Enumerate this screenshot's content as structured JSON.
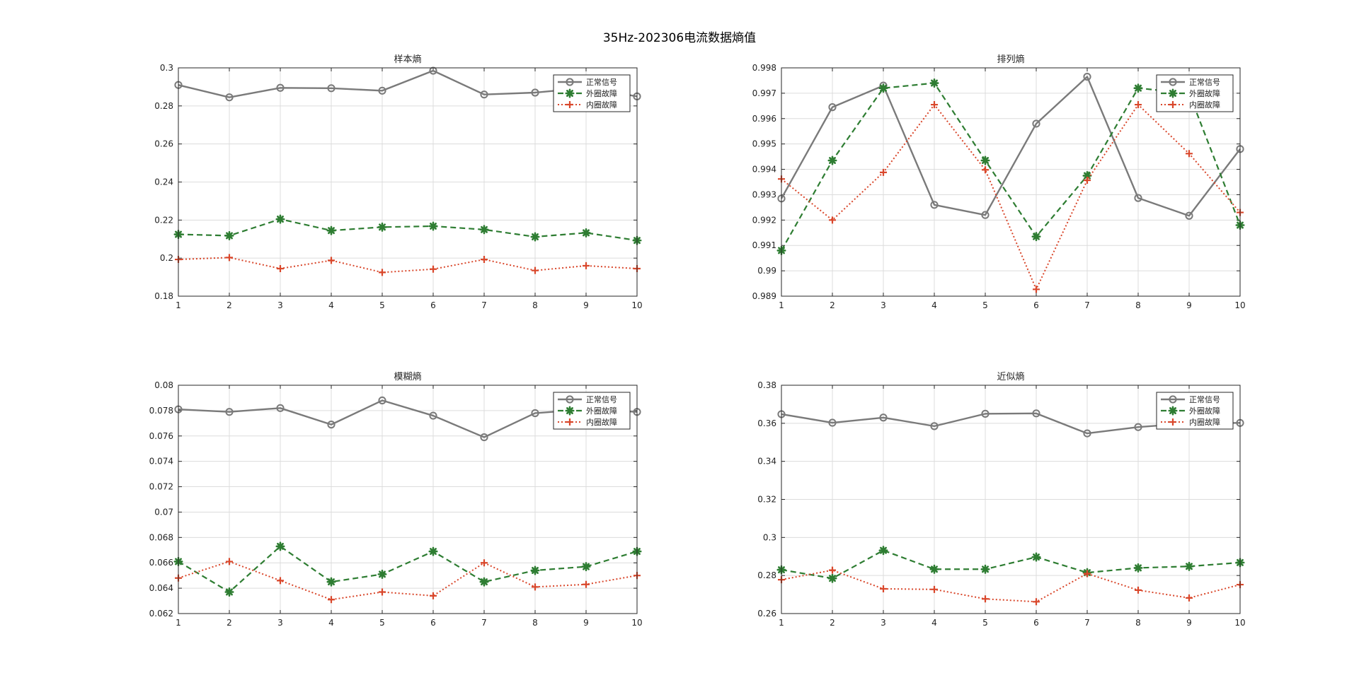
{
  "figure_title": "35Hz-202306电流数据熵值",
  "colors": {
    "normal": "#7a7a7a",
    "outer": "#2e7d32",
    "inner": "#d9472b",
    "grid": "#dcdcdc",
    "axis": "#262626"
  },
  "chart_data": [
    {
      "type": "line",
      "title": "样本熵",
      "x": [
        1,
        2,
        3,
        4,
        5,
        6,
        7,
        8,
        9,
        10
      ],
      "xlim": [
        1,
        10
      ],
      "ylim": [
        0.18,
        0.3
      ],
      "yticks": [
        0.18,
        0.2,
        0.22,
        0.24,
        0.26,
        0.28,
        0.3
      ],
      "ytick_labels": [
        "0.18",
        "0.2",
        "0.22",
        "0.24",
        "0.26",
        "0.28",
        "0.3"
      ],
      "grid": true,
      "legend_position": "top-right",
      "series": [
        {
          "name": "正常信号",
          "values": [
            0.291,
            0.2845,
            0.2895,
            0.2893,
            0.288,
            0.2985,
            0.286,
            0.287,
            0.2895,
            0.285
          ]
        },
        {
          "name": "外圈故障",
          "values": [
            0.2125,
            0.2118,
            0.2205,
            0.2145,
            0.2163,
            0.2168,
            0.215,
            0.2112,
            0.2133,
            0.2093
          ]
        },
        {
          "name": "内圈故障",
          "values": [
            0.1993,
            0.2003,
            0.1945,
            0.1988,
            0.1925,
            0.1942,
            0.1993,
            0.1935,
            0.196,
            0.1945
          ]
        }
      ]
    },
    {
      "type": "line",
      "title": "排列熵",
      "x": [
        1,
        2,
        3,
        4,
        5,
        6,
        7,
        8,
        9,
        10
      ],
      "xlim": [
        1,
        10
      ],
      "ylim": [
        0.989,
        0.998
      ],
      "yticks": [
        0.989,
        0.99,
        0.991,
        0.992,
        0.993,
        0.994,
        0.995,
        0.996,
        0.997,
        0.998
      ],
      "ytick_labels": [
        "0.989",
        "0.99",
        "0.991",
        "0.992",
        "0.993",
        "0.994",
        "0.995",
        "0.996",
        "0.997",
        "0.998"
      ],
      "grid": true,
      "legend_position": "top-right",
      "series": [
        {
          "name": "正常信号",
          "values": [
            0.99285,
            0.99645,
            0.9973,
            0.9926,
            0.9922,
            0.9958,
            0.99765,
            0.99287,
            0.99217,
            0.9948
          ]
        },
        {
          "name": "外圈故障",
          "values": [
            0.9908,
            0.99435,
            0.9972,
            0.9974,
            0.99435,
            0.99135,
            0.99375,
            0.9972,
            0.997,
            0.9918
          ]
        },
        {
          "name": "内圈故障",
          "values": [
            0.99362,
            0.992,
            0.99388,
            0.99655,
            0.99398,
            0.98927,
            0.99357,
            0.99655,
            0.99462,
            0.9923
          ]
        }
      ]
    },
    {
      "type": "line",
      "title": "模糊熵",
      "x": [
        1,
        2,
        3,
        4,
        5,
        6,
        7,
        8,
        9,
        10
      ],
      "xlim": [
        1,
        10
      ],
      "ylim": [
        0.062,
        0.08
      ],
      "yticks": [
        0.062,
        0.064,
        0.066,
        0.068,
        0.07,
        0.072,
        0.074,
        0.076,
        0.078,
        0.08
      ],
      "ytick_labels": [
        "0.062",
        "0.064",
        "0.066",
        "0.068",
        "0.07",
        "0.072",
        "0.074",
        "0.076",
        "0.078",
        "0.08"
      ],
      "grid": true,
      "legend_position": "top-right",
      "series": [
        {
          "name": "正常信号",
          "values": [
            0.0781,
            0.0779,
            0.0782,
            0.0769,
            0.0788,
            0.0776,
            0.0759,
            0.0778,
            0.0781,
            0.0779
          ]
        },
        {
          "name": "外圈故障",
          "values": [
            0.0661,
            0.0637,
            0.0673,
            0.0645,
            0.0651,
            0.0669,
            0.0645,
            0.0654,
            0.0657,
            0.0669
          ]
        },
        {
          "name": "内圈故障",
          "values": [
            0.0648,
            0.0661,
            0.0646,
            0.0631,
            0.0637,
            0.0634,
            0.066,
            0.0641,
            0.0643,
            0.065
          ]
        }
      ]
    },
    {
      "type": "line",
      "title": "近似熵",
      "x": [
        1,
        2,
        3,
        4,
        5,
        6,
        7,
        8,
        9,
        10
      ],
      "xlim": [
        1,
        10
      ],
      "ylim": [
        0.26,
        0.38
      ],
      "yticks": [
        0.26,
        0.28,
        0.3,
        0.32,
        0.34,
        0.36,
        0.38
      ],
      "ytick_labels": [
        "0.26",
        "0.28",
        "0.3",
        "0.32",
        "0.34",
        "0.36",
        "0.38"
      ],
      "grid": true,
      "legend_position": "top-right",
      "series": [
        {
          "name": "正常信号",
          "values": [
            0.3648,
            0.3603,
            0.363,
            0.3585,
            0.365,
            0.3652,
            0.3547,
            0.358,
            0.36,
            0.3602
          ]
        },
        {
          "name": "外圈故障",
          "values": [
            0.283,
            0.2785,
            0.2932,
            0.2833,
            0.2833,
            0.2897,
            0.2815,
            0.284,
            0.2848,
            0.2868
          ]
        },
        {
          "name": "内圈故障",
          "values": [
            0.2778,
            0.2828,
            0.273,
            0.2727,
            0.2677,
            0.2662,
            0.281,
            0.2723,
            0.2682,
            0.2752
          ]
        }
      ]
    }
  ]
}
